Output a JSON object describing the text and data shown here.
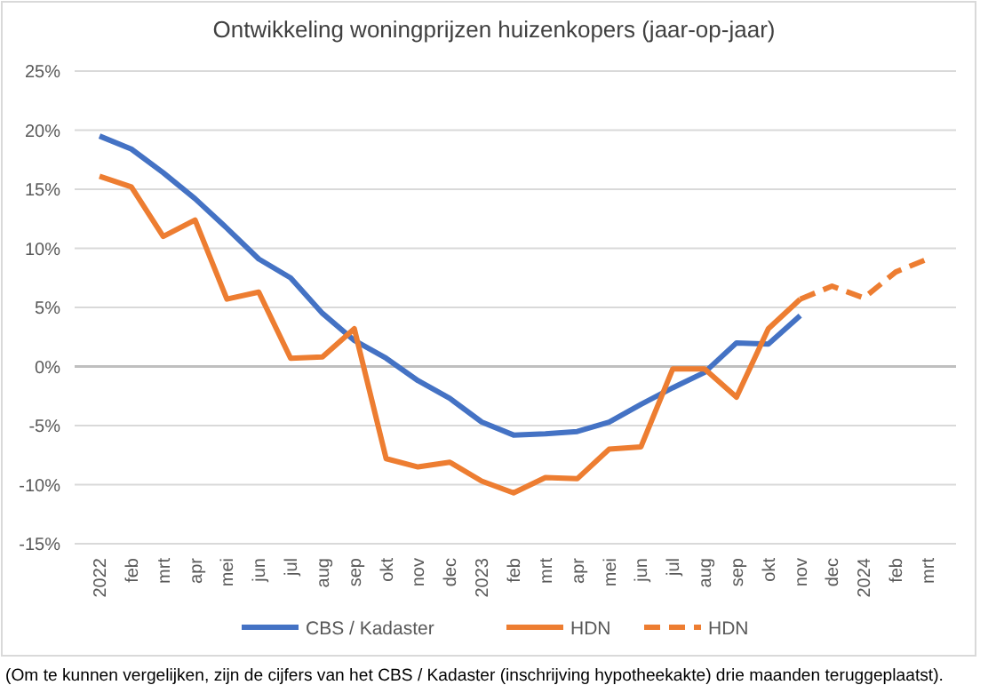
{
  "chart_data": {
    "type": "line",
    "title": "Ontwikkeling woningprijzen huizenkopers (jaar-op-jaar)",
    "categories": [
      "2022",
      "feb",
      "mrt",
      "apr",
      "mei",
      "jun",
      "jul",
      "aug",
      "sep",
      "okt",
      "nov",
      "dec",
      "2023",
      "feb",
      "mrt",
      "apr",
      "mei",
      "jun",
      "jul",
      "aug",
      "sep",
      "okt",
      "nov",
      "dec",
      "2024",
      "feb",
      "mrt"
    ],
    "series": [
      {
        "name": "CBS / Kadaster",
        "color": "#4472c4",
        "line_style": "solid",
        "values": [
          19.5,
          18.4,
          16.4,
          14.2,
          11.7,
          9.1,
          7.5,
          4.5,
          2.2,
          0.7,
          -1.2,
          -2.7,
          -4.7,
          -5.8,
          -5.7,
          -5.5,
          -4.7,
          -3.2,
          -1.8,
          -0.5,
          2.0,
          1.9,
          4.3,
          null,
          null,
          null,
          null
        ]
      },
      {
        "name": "HDN",
        "color": "#ed7d31",
        "line_style": "solid",
        "values": [
          16.1,
          15.2,
          11.0,
          12.4,
          5.7,
          6.3,
          0.7,
          0.8,
          3.2,
          -7.8,
          -8.5,
          -8.1,
          -9.7,
          -10.7,
          -9.4,
          -9.5,
          -7.0,
          -6.8,
          -0.2,
          -0.2,
          -2.6,
          3.2,
          5.7,
          null,
          null,
          null,
          null
        ]
      },
      {
        "name": "HDN",
        "color": "#ed7d31",
        "line_style": "dashed",
        "values": [
          null,
          null,
          null,
          null,
          null,
          null,
          null,
          null,
          null,
          null,
          null,
          null,
          null,
          null,
          null,
          null,
          null,
          null,
          null,
          null,
          null,
          null,
          5.7,
          6.8,
          5.8,
          8.0,
          9.1
        ]
      }
    ],
    "ylim": [
      -15,
      25
    ],
    "yticks": [
      {
        "value": -15,
        "label": "-15%"
      },
      {
        "value": -10,
        "label": "-10%"
      },
      {
        "value": -5,
        "label": "-5%"
      },
      {
        "value": 0,
        "label": "0%"
      },
      {
        "value": 5,
        "label": "5%"
      },
      {
        "value": 10,
        "label": "10%"
      },
      {
        "value": 15,
        "label": "15%"
      },
      {
        "value": 20,
        "label": "20%"
      },
      {
        "value": 25,
        "label": "25%"
      }
    ],
    "grid": "y",
    "legend": "bottom",
    "marker": "none",
    "annotations": [
      "(Om te kunnen vergelijken, zijn de cijfers van het CBS / Kadaster (inschrijving hypotheekakte) drie maanden teruggeplaatst)."
    ]
  }
}
